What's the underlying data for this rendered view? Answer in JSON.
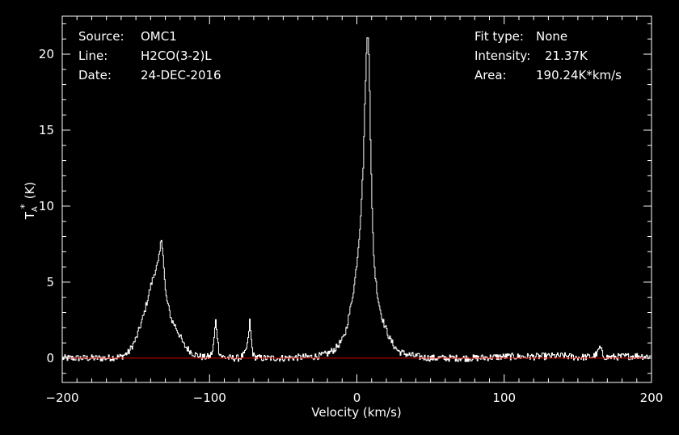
{
  "info_left": [
    {
      "label": "Source:",
      "value": "OMC1"
    },
    {
      "label": "Line:",
      "value": "H2CO(3-2)L"
    },
    {
      "label": "Date:",
      "value": "24-DEC-2016"
    }
  ],
  "info_right": [
    {
      "label": "Fit type:",
      "value": "None"
    },
    {
      "label": "Intensity:",
      "value": "21.37K"
    },
    {
      "label": "Area:",
      "value": "190.24K*km/s"
    }
  ],
  "colors": {
    "background": "#000000",
    "frame": "#ffffff",
    "spectrum": "#ffffff",
    "baseline": "#cc0000"
  },
  "chart_data": {
    "type": "line",
    "xlabel": "Velocity (km/s)",
    "ylabel_main": "T",
    "ylabel_sub": "A",
    "ylabel_sup": "*",
    "ylabel_unit": "(K)",
    "xlim": [
      -200,
      200
    ],
    "ylim": [
      -1.6,
      22.5
    ],
    "xticks": [
      -200,
      -100,
      0,
      100,
      200
    ],
    "yticks": [
      0,
      5,
      10,
      15,
      20
    ],
    "xtick_labels": [
      "−200",
      "−100",
      "0",
      "100",
      "200"
    ],
    "ytick_labels": [
      "0",
      "5",
      "10",
      "15",
      "20"
    ],
    "baseline": 0,
    "series": [
      {
        "x": [
          -200,
          -170,
          -160,
          -155,
          -150,
          -145,
          -140,
          -137,
          -135,
          -134,
          -133,
          -132,
          -131,
          -130,
          -128,
          -126,
          -124,
          -122,
          -120,
          -118,
          -115,
          -112,
          -108,
          -104,
          -100,
          -98,
          -97,
          -96,
          -95,
          -94,
          -92,
          -90,
          -85,
          -80,
          -76,
          -74,
          -73,
          -72,
          -71,
          -70,
          -68,
          -65,
          -60,
          -50,
          -40,
          -30,
          -25,
          -20,
          -15,
          -10,
          -8,
          -6,
          -4,
          -2,
          0,
          2,
          4,
          5,
          6,
          7,
          7.5,
          8,
          8.5,
          9,
          10,
          11,
          12,
          14,
          16,
          18,
          20,
          22,
          25,
          28,
          32,
          36,
          40,
          45,
          50,
          60,
          80,
          100,
          120,
          140,
          150,
          160,
          163,
          164,
          165,
          166,
          167,
          170,
          180,
          190,
          200
        ],
        "y": [
          0,
          0,
          0.1,
          0.4,
          1.3,
          2.8,
          4.8,
          5.8,
          6.3,
          7.0,
          7.9,
          7.2,
          5.5,
          4.2,
          3.3,
          2.5,
          2.2,
          1.8,
          1.4,
          0.9,
          0.6,
          0.35,
          0.15,
          0.05,
          0.1,
          0.5,
          1.5,
          2.5,
          1.5,
          0.5,
          0.1,
          0.05,
          0.0,
          0.0,
          0.3,
          1.2,
          2.5,
          1.3,
          0.4,
          0.1,
          0.05,
          0.0,
          0.0,
          0.0,
          0.05,
          0.1,
          0.15,
          0.3,
          0.6,
          1.2,
          1.7,
          2.6,
          3.6,
          4.8,
          6.5,
          8.8,
          12.5,
          16.0,
          19.5,
          21.37,
          21.0,
          20.0,
          17.5,
          14.5,
          10.0,
          7.2,
          5.6,
          4.0,
          3.0,
          2.3,
          1.8,
          1.3,
          0.8,
          0.45,
          0.3,
          0.2,
          0.12,
          0.05,
          0.0,
          0.0,
          0.0,
          0.1,
          0.1,
          0.15,
          0.05,
          0.1,
          0.3,
          0.6,
          0.7,
          0.4,
          0.15,
          0.05,
          0.1,
          0.15,
          0.1
        ]
      }
    ]
  }
}
